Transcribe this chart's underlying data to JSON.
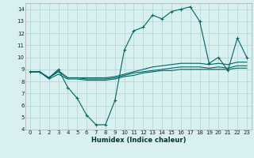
{
  "title": "",
  "xlabel": "Humidex (Indice chaleur)",
  "bg_color": "#d8f0f0",
  "grid_color": "#b8d8d8",
  "line_color": "#006666",
  "xlim": [
    -0.5,
    23.5
  ],
  "ylim": [
    4,
    14.5
  ],
  "yticks": [
    4,
    5,
    6,
    7,
    8,
    9,
    10,
    11,
    12,
    13,
    14
  ],
  "xticks": [
    0,
    1,
    2,
    3,
    4,
    5,
    6,
    7,
    8,
    9,
    10,
    11,
    12,
    13,
    14,
    15,
    16,
    17,
    18,
    19,
    20,
    21,
    22,
    23
  ],
  "line1_x": [
    0,
    1,
    2,
    3,
    4,
    5,
    6,
    7,
    8,
    9,
    10,
    11,
    12,
    13,
    14,
    15,
    16,
    17,
    18,
    19,
    20,
    21,
    22,
    23
  ],
  "line1_y": [
    8.8,
    8.8,
    8.3,
    9.0,
    7.5,
    6.6,
    5.2,
    4.4,
    4.4,
    6.4,
    10.6,
    12.2,
    12.5,
    13.5,
    13.2,
    13.8,
    14.0,
    14.2,
    13.0,
    9.5,
    10.0,
    8.9,
    11.6,
    10.0
  ],
  "line2_x": [
    0,
    1,
    2,
    3,
    4,
    5,
    6,
    7,
    8,
    9,
    10,
    11,
    12,
    13,
    14,
    15,
    16,
    17,
    18,
    19,
    20,
    21,
    22,
    23
  ],
  "line2_y": [
    8.8,
    8.8,
    8.3,
    8.9,
    8.3,
    8.3,
    8.3,
    8.3,
    8.3,
    8.4,
    8.6,
    8.8,
    9.0,
    9.2,
    9.3,
    9.4,
    9.5,
    9.5,
    9.5,
    9.4,
    9.5,
    9.4,
    9.6,
    9.6
  ],
  "line3_x": [
    0,
    1,
    2,
    3,
    4,
    5,
    6,
    7,
    8,
    9,
    10,
    11,
    12,
    13,
    14,
    15,
    16,
    17,
    18,
    19,
    20,
    21,
    22,
    23
  ],
  "line3_y": [
    8.8,
    8.8,
    8.3,
    8.8,
    8.3,
    8.3,
    8.2,
    8.2,
    8.2,
    8.3,
    8.5,
    8.7,
    8.8,
    8.9,
    9.0,
    9.1,
    9.2,
    9.2,
    9.2,
    9.1,
    9.2,
    9.1,
    9.3,
    9.3
  ],
  "line4_x": [
    0,
    1,
    2,
    3,
    4,
    5,
    6,
    7,
    8,
    9,
    10,
    11,
    12,
    13,
    14,
    15,
    16,
    17,
    18,
    19,
    20,
    21,
    22,
    23
  ],
  "line4_y": [
    8.8,
    8.8,
    8.2,
    8.6,
    8.2,
    8.2,
    8.1,
    8.1,
    8.1,
    8.2,
    8.4,
    8.5,
    8.7,
    8.8,
    8.9,
    8.9,
    9.0,
    9.0,
    9.0,
    9.0,
    9.0,
    9.0,
    9.1,
    9.1
  ]
}
